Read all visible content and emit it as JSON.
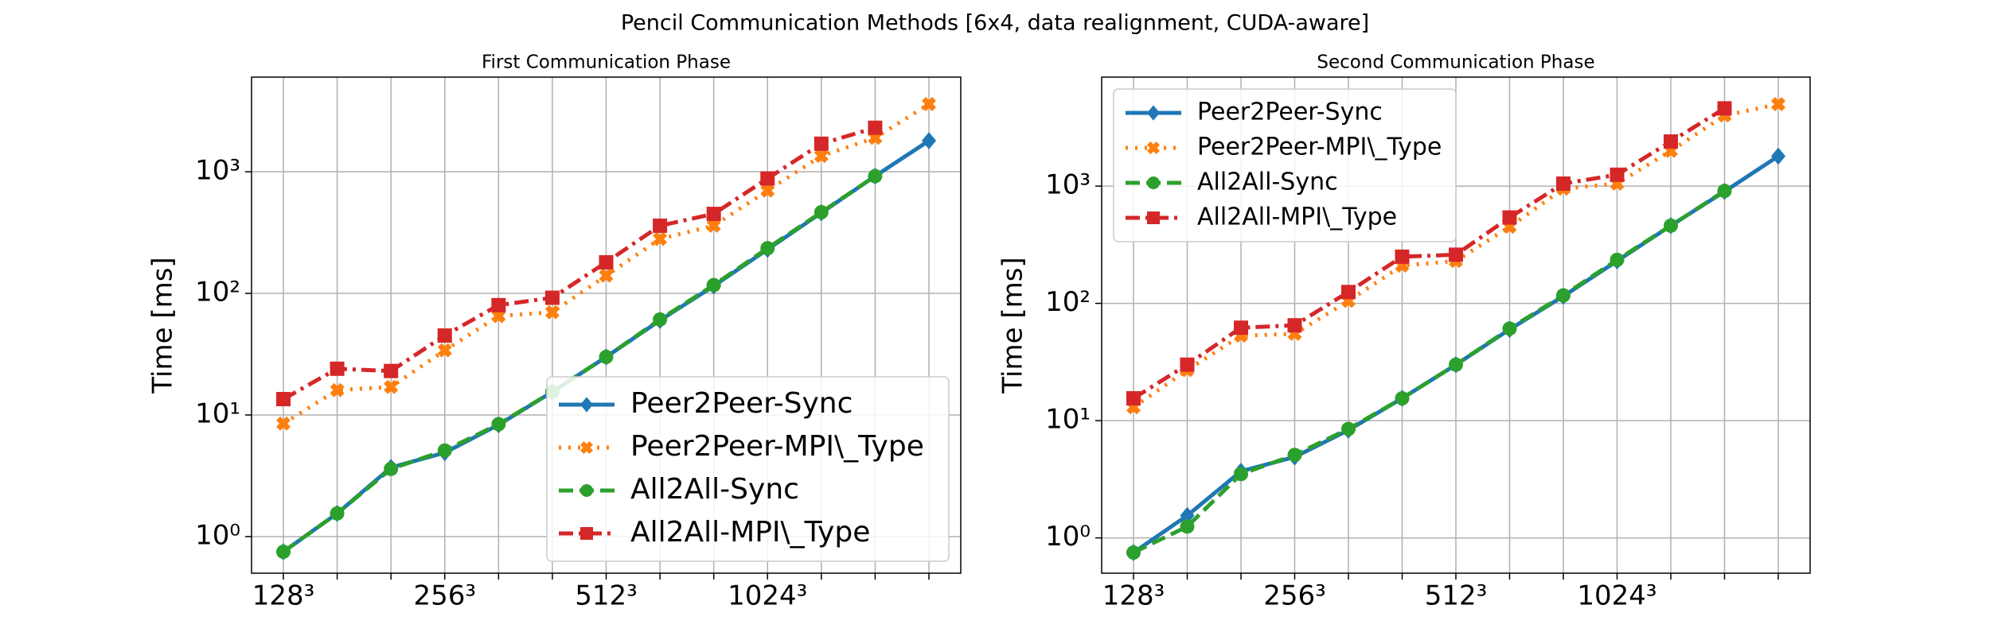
{
  "title": "Pencil Communication Methods [6x4, data realignment, CUDA-aware]",
  "chart_data": [
    {
      "type": "line",
      "title": "First Communication Phase",
      "y_label": "Time [ms]",
      "log_y": true,
      "grid": true,
      "legend": "lower right",
      "categories": [
        "128³",
        null,
        null,
        "256³",
        null,
        null,
        "512³",
        null,
        null,
        "1024³",
        null,
        null,
        null
      ],
      "ylim": [
        0.5,
        6000
      ],
      "yticks": [
        {
          "value": 1,
          "label": "10⁰"
        },
        {
          "value": 10,
          "label": "10¹"
        },
        {
          "value": 100,
          "label": "10²"
        },
        {
          "value": 1000,
          "label": "10³"
        }
      ],
      "series": [
        {
          "name": "Peer2Peer-Sync",
          "color": "#1f77b4",
          "marker": "diamond",
          "linestyle": "solid",
          "values": [
            0.75,
            1.55,
            3.7,
            4.9,
            8.3,
            15.5,
            30,
            60,
            115,
            230,
            460,
            920,
            1800
          ]
        },
        {
          "name": "Peer2Peer-MPI\\_Type",
          "color": "#ff7f0e",
          "marker": "x",
          "linestyle": "dotted",
          "values": [
            8.5,
            16,
            17,
            34,
            65,
            70,
            140,
            280,
            360,
            700,
            1350,
            1900,
            3600
          ]
        },
        {
          "name": "All2All-Sync",
          "color": "#2ca02c",
          "marker": "circle",
          "linestyle": "dashed",
          "values": [
            0.75,
            1.55,
            3.6,
            5.1,
            8.4,
            15.5,
            30,
            61,
            117,
            235,
            465,
            920,
            null
          ]
        },
        {
          "name": "All2All-MPI\\_Type",
          "color": "#d62728",
          "marker": "square",
          "linestyle": "dashdot",
          "values": [
            13.5,
            24,
            23,
            45,
            80,
            92,
            180,
            360,
            450,
            880,
            1700,
            2300,
            null
          ]
        }
      ]
    },
    {
      "type": "line",
      "title": "Second Communication Phase",
      "y_label": "Time [ms]",
      "log_y": true,
      "grid": true,
      "legend": "upper left",
      "categories": [
        "128³",
        null,
        null,
        "256³",
        null,
        null,
        "512³",
        null,
        null,
        "1024³",
        null,
        null,
        null
      ],
      "ylim": [
        0.5,
        8500
      ],
      "yticks": [
        {
          "value": 1,
          "label": "10⁰"
        },
        {
          "value": 10,
          "label": "10¹"
        },
        {
          "value": 100,
          "label": "10²"
        },
        {
          "value": 1000,
          "label": "10³"
        }
      ],
      "series": [
        {
          "name": "Peer2Peer-Sync",
          "color": "#1f77b4",
          "marker": "diamond",
          "linestyle": "solid",
          "values": [
            0.75,
            1.55,
            3.7,
            4.9,
            8.3,
            15.5,
            30,
            60,
            115,
            230,
            460,
            900,
            1800
          ]
        },
        {
          "name": "Peer2Peer-MPI\\_Type",
          "color": "#ff7f0e",
          "marker": "x",
          "linestyle": "dotted",
          "values": [
            13,
            27,
            53,
            55,
            105,
            210,
            230,
            450,
            950,
            1050,
            2000,
            4000,
            5000
          ]
        },
        {
          "name": "All2All-Sync",
          "color": "#2ca02c",
          "marker": "circle",
          "linestyle": "dashed",
          "values": [
            0.75,
            1.25,
            3.5,
            5.1,
            8.5,
            15.5,
            30,
            61,
            117,
            235,
            460,
            910,
            null
          ]
        },
        {
          "name": "All2All-MPI\\_Type",
          "color": "#d62728",
          "marker": "square",
          "linestyle": "dashdot",
          "values": [
            15.5,
            30,
            62,
            65,
            125,
            250,
            260,
            540,
            1050,
            1250,
            2400,
            4600,
            null
          ]
        }
      ]
    }
  ]
}
